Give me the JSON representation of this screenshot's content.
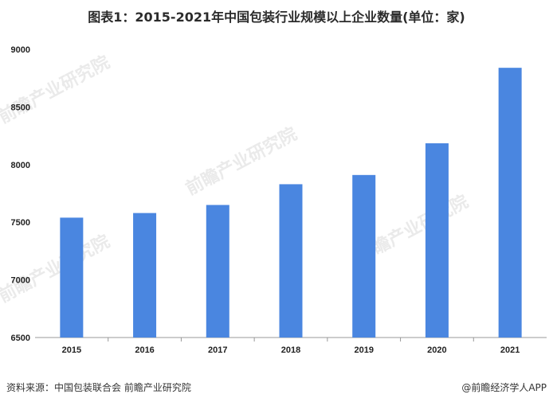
{
  "title": "图表1：2015-2021年中国包装行业规模以上企业数量(单位：家)",
  "footer": {
    "source": "资料来源：中国包装联合会 前瞻产业研究院",
    "brand": "@前瞻经济学人APP"
  },
  "watermark": "前瞻产业研究院",
  "colors": {
    "bar": "#4a86e0",
    "axis": "#999999"
  },
  "chart_data": {
    "type": "bar",
    "categories": [
      "2015",
      "2016",
      "2017",
      "2018",
      "2019",
      "2020",
      "2021"
    ],
    "values": [
      7540,
      7580,
      7650,
      7830,
      7910,
      8185,
      8840
    ],
    "ylim": [
      6500,
      9000
    ],
    "yticks": [
      6500,
      7000,
      7500,
      8000,
      8500,
      9000
    ],
    "grid": false
  }
}
